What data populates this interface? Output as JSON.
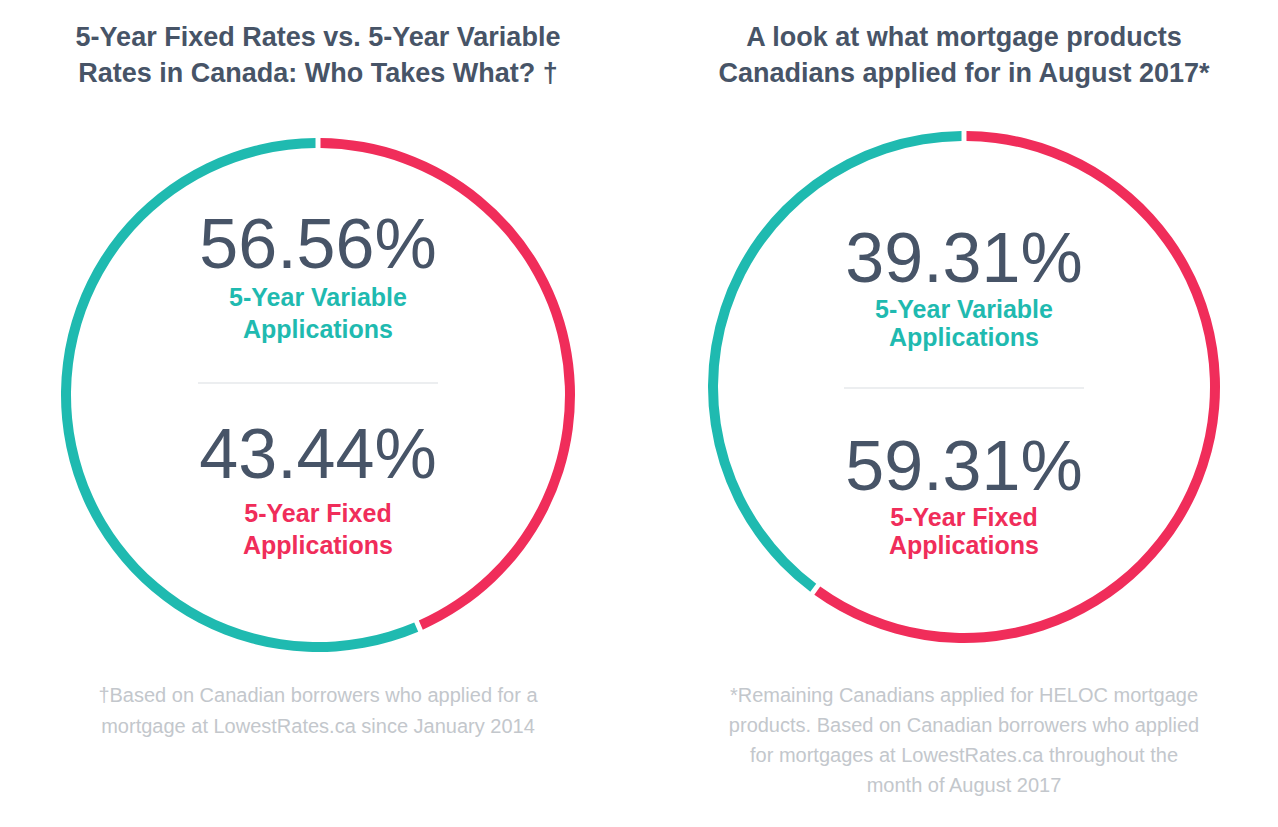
{
  "chart_data": [
    {
      "type": "pie",
      "title": [
        "5-Year Fixed Rates vs. 5-Year Variable",
        "Rates in Canada: Who Takes What? †"
      ],
      "categories": [
        "5-Year Variable Applications",
        "5-Year Fixed Applications"
      ],
      "values": [
        56.56,
        43.44
      ],
      "value_labels": [
        "56.56%",
        "43.44%"
      ],
      "colors": [
        "#1fbab0",
        "#f02d5a"
      ],
      "data_labels": true,
      "note": [
        "†Based on Canadian borrowers who applied for a",
        "mortgage at LowestRates.ca since January 2014"
      ]
    },
    {
      "type": "pie",
      "title": [
        "A look at what mortgage products",
        "Canadians applied for in August 2017*"
      ],
      "categories": [
        "5-Year Variable Applications",
        "5-Year Fixed Applications"
      ],
      "values": [
        39.31,
        59.31
      ],
      "value_labels": [
        "39.31%",
        "59.31%"
      ],
      "colors": [
        "#1fbab0",
        "#f02d5a"
      ],
      "data_labels": true,
      "note": [
        "*Remaining Canadians applied for HELOC mortgage",
        "products. Based on Canadian borrowers who applied",
        "for mortgages at LowestRates.ca throughout the",
        "month of August 2017"
      ]
    }
  ]
}
